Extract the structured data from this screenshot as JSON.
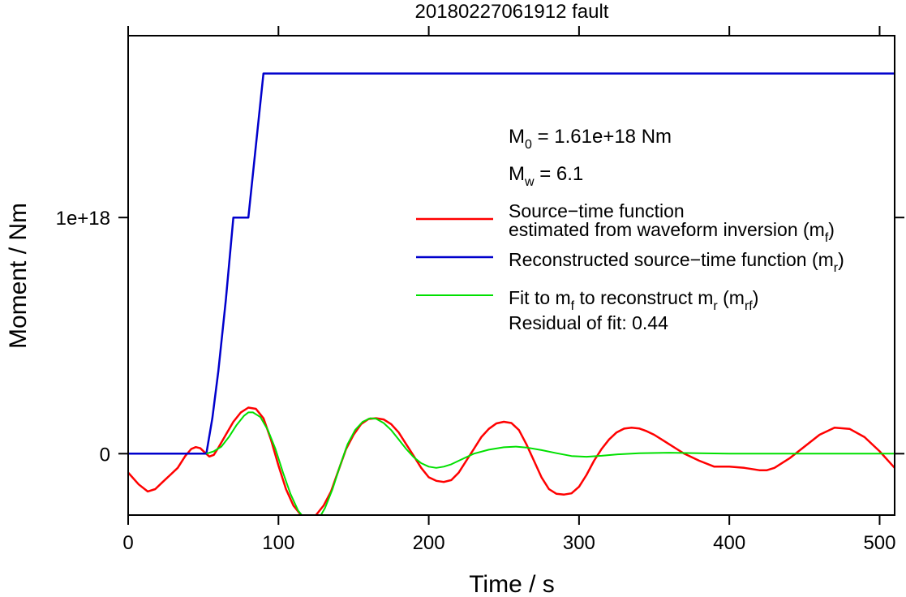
{
  "chart_data": {
    "type": "line",
    "title": "20180227061912 fault",
    "xlabel": "Time / s",
    "ylabel": "Moment / Nm",
    "xlim": [
      0,
      510
    ],
    "ylim": [
      -2.6e+17,
      1.77e+18
    ],
    "xticks": [
      0,
      100,
      200,
      300,
      400,
      500
    ],
    "xtick_labels": [
      "0",
      "100",
      "200",
      "300",
      "400",
      "500"
    ],
    "yticks": [
      0,
      1e+18
    ],
    "ytick_labels": [
      "0",
      "1e+18"
    ],
    "grid": false,
    "legend_position": "right",
    "annotations": {
      "m0": {
        "prefix": "M",
        "sub": "0",
        "rest": " = 1.61e+18 Nm"
      },
      "mw": {
        "prefix": "M",
        "sub": "w",
        "rest": " = 6.1"
      },
      "residual": "Residual of fit: 0.44"
    },
    "legend": [
      {
        "color": "#ff0000",
        "lines": [
          [
            {
              "t": "Source−time function"
            }
          ],
          [
            {
              "t": "estimated from waveform inversion (m"
            },
            {
              "t": "f",
              "sub": true
            },
            {
              "t": ")"
            }
          ]
        ]
      },
      {
        "color": "#0000cc",
        "lines": [
          [
            {
              "t": "Reconstructed source−time function (m"
            },
            {
              "t": "r",
              "sub": true
            },
            {
              "t": ")"
            }
          ]
        ]
      },
      {
        "color": "#00e000",
        "lines": [
          [
            {
              "t": "Fit to m"
            },
            {
              "t": "f",
              "sub": true
            },
            {
              "t": " to reconstruct m"
            },
            {
              "t": "r",
              "sub": true
            },
            {
              "t": " (m"
            },
            {
              "t": "rf",
              "sub": true
            },
            {
              "t": ")"
            }
          ]
        ]
      }
    ],
    "series": [
      {
        "name": "Source−time function estimated from waveform inversion (mf)",
        "color": "#ff0000",
        "x": [
          0,
          7,
          13,
          18,
          23,
          28,
          33,
          38,
          42,
          45,
          48,
          51,
          54,
          57,
          60,
          65,
          70,
          75,
          80,
          85,
          90,
          95,
          100,
          105,
          110,
          115,
          120,
          125,
          130,
          135,
          140,
          145,
          150,
          155,
          160,
          165,
          170,
          175,
          180,
          185,
          190,
          195,
          200,
          205,
          210,
          215,
          220,
          225,
          230,
          235,
          240,
          245,
          250,
          255,
          260,
          265,
          270,
          275,
          280,
          285,
          290,
          295,
          300,
          305,
          310,
          315,
          320,
          325,
          330,
          335,
          340,
          345,
          350,
          355,
          360,
          365,
          370,
          380,
          390,
          400,
          410,
          420,
          425,
          430,
          440,
          450,
          460,
          470,
          480,
          490,
          500,
          510
        ],
        "y": [
          -8e+16,
          -1.3e+17,
          -1.6e+17,
          -1.5e+17,
          -1.2e+17,
          -9e+16,
          -6e+16,
          -1e+16,
          2e+16,
          2.8e+16,
          2.3e+16,
          5000000000000000.0,
          -1.2e+16,
          -5000000000000000.0,
          2.5e+16,
          8e+16,
          1.35e+17,
          1.75e+17,
          1.95e+17,
          1.9e+17,
          1.5e+17,
          6e+16,
          -5e+16,
          -1.5e+17,
          -2.2e+17,
          -2.6e+17,
          -2.75e+17,
          -2.6e+17,
          -2.2e+17,
          -1.6e+17,
          -7e+16,
          2e+16,
          8e+16,
          1.25e+17,
          1.47e+17,
          1.5e+17,
          1.45e+17,
          1.25e+17,
          9e+16,
          4e+16,
          -1e+16,
          -6e+16,
          -1e+17,
          -1.15e+17,
          -1.2e+17,
          -1.12e+17,
          -8e+16,
          -3e+16,
          2e+16,
          7e+16,
          1.05e+17,
          1.28e+17,
          1.35e+17,
          1.3e+17,
          1e+17,
          4e+16,
          -3e+16,
          -1e+17,
          -1.5e+17,
          -1.7e+17,
          -1.73e+17,
          -1.68e+17,
          -1.4e+17,
          -9e+16,
          -3e+16,
          2e+16,
          6e+16,
          9e+16,
          1.06e+17,
          1.1e+17,
          1.07e+17,
          9.5e+16,
          8e+16,
          6e+16,
          4e+16,
          2e+16,
          0,
          -3e+16,
          -5.5e+16,
          -5.5e+16,
          -6e+16,
          -7e+16,
          -7e+16,
          -6e+16,
          -2e+16,
          3e+16,
          8e+16,
          1.1e+17,
          1.05e+17,
          7e+16,
          1e+16,
          -6e+16
        ]
      },
      {
        "name": "Reconstructed source−time function (mr)",
        "color": "#0000cc",
        "x": [
          0,
          52,
          56,
          60,
          65,
          70,
          80,
          90,
          510
        ],
        "y": [
          0,
          0,
          1.5e+17,
          3.5e+17,
          6.5e+17,
          1e+18,
          1e+18,
          1.61e+18,
          1.61e+18
        ]
      },
      {
        "name": "Fit to mf to reconstruct mr (mrf)",
        "color": "#00e000",
        "x": [
          52,
          57,
          62,
          67,
          72,
          77,
          80,
          83,
          88,
          93,
          98,
          103,
          108,
          113,
          118,
          122,
          126,
          131,
          136,
          141,
          146,
          151,
          156,
          161,
          165,
          170,
          175,
          180,
          185,
          190,
          195,
          200,
          205,
          210,
          215,
          220,
          230,
          240,
          250,
          258,
          265,
          275,
          285,
          295,
          305,
          315,
          325,
          340,
          360,
          380,
          400,
          420,
          440,
          460,
          480,
          500,
          510
        ],
        "y": [
          0,
          1e+16,
          3e+16,
          7e+16,
          1.2e+17,
          1.6e+17,
          1.75e+17,
          1.75e+17,
          1.55e+17,
          1e+17,
          2e+16,
          -8e+16,
          -1.7e+17,
          -2.4e+17,
          -2.8e+17,
          -2.95e+17,
          -2.85e+17,
          -2.3e+17,
          -1.5e+17,
          -5e+16,
          4e+16,
          1e+17,
          1.35e+17,
          1.5e+17,
          1.48e+17,
          1.3e+17,
          1e+17,
          6e+16,
          2e+16,
          -1.5e+16,
          -4e+16,
          -5.5e+16,
          -6e+16,
          -5.5e+16,
          -4.5e+16,
          -3e+16,
          0,
          1.7e+16,
          2.7e+16,
          3e+16,
          2.6e+16,
          1.5e+16,
          2000000000000000.0,
          -1e+16,
          -1.3e+16,
          -9000000000000000.0,
          -3000000000000000.0,
          2000000000000000.0,
          4000000000000000.0,
          2000000000000000.0,
          0,
          0,
          0,
          0,
          0,
          0,
          0
        ]
      }
    ]
  }
}
